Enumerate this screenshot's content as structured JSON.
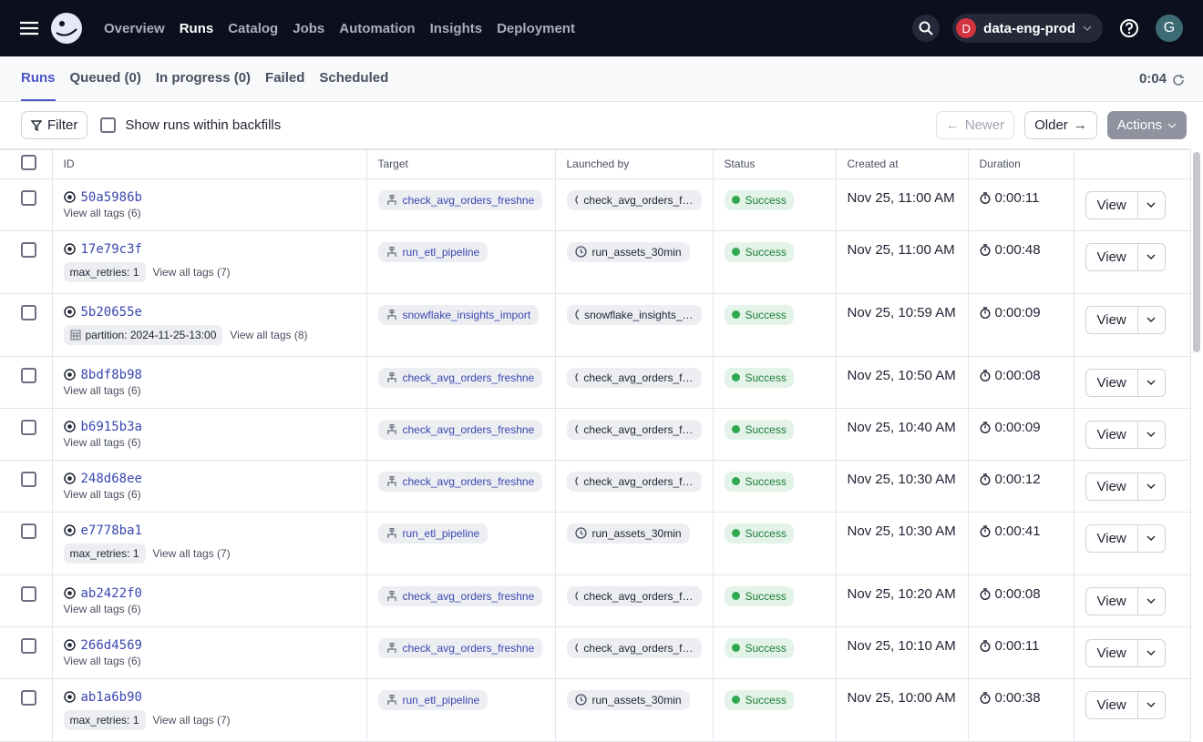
{
  "nav": {
    "links": [
      "Overview",
      "Runs",
      "Catalog",
      "Jobs",
      "Automation",
      "Insights",
      "Deployment"
    ],
    "active": 1,
    "deployment": {
      "initial": "D",
      "name": "data-eng-prod"
    },
    "user_initial": "G"
  },
  "tabs": {
    "items": [
      "Runs",
      "Queued (0)",
      "In progress (0)",
      "Failed",
      "Scheduled"
    ],
    "active": 0,
    "refresh_timer": "0:04"
  },
  "toolbar": {
    "filter": "Filter",
    "backfills_toggle": "Show runs within backfills",
    "newer": "Newer",
    "older": "Older",
    "actions": "Actions"
  },
  "table": {
    "columns": [
      "ID",
      "Target",
      "Launched by",
      "Status",
      "Created at",
      "Duration"
    ],
    "row_action": "View",
    "rows": [
      {
        "id": "50a5986b",
        "tags": [],
        "view_all_tags": "View all tags (6)",
        "target": "check_avg_orders_freshne",
        "launched_by": "check_avg_orders_f…",
        "status": "Success",
        "created_at": "Nov 25, 11:00 AM",
        "duration": "0:00:11"
      },
      {
        "id": "17e79c3f",
        "tags": [
          "max_retries: 1"
        ],
        "view_all_tags": "View all tags (7)",
        "target": "run_etl_pipeline",
        "launched_by": "run_assets_30min",
        "status": "Success",
        "created_at": "Nov 25, 11:00 AM",
        "duration": "0:00:48"
      },
      {
        "id": "5b20655e",
        "tags": [
          "partition: 2024-11-25-13:00"
        ],
        "view_all_tags": "View all tags (8)",
        "target": "snowflake_insights_import",
        "launched_by": "snowflake_insights_…",
        "status": "Success",
        "created_at": "Nov 25, 10:59 AM",
        "duration": "0:00:09"
      },
      {
        "id": "8bdf8b98",
        "tags": [],
        "view_all_tags": "View all tags (6)",
        "target": "check_avg_orders_freshne",
        "launched_by": "check_avg_orders_f…",
        "status": "Success",
        "created_at": "Nov 25, 10:50 AM",
        "duration": "0:00:08"
      },
      {
        "id": "b6915b3a",
        "tags": [],
        "view_all_tags": "View all tags (6)",
        "target": "check_avg_orders_freshne",
        "launched_by": "check_avg_orders_f…",
        "status": "Success",
        "created_at": "Nov 25, 10:40 AM",
        "duration": "0:00:09"
      },
      {
        "id": "248d68ee",
        "tags": [],
        "view_all_tags": "View all tags (6)",
        "target": "check_avg_orders_freshne",
        "launched_by": "check_avg_orders_f…",
        "status": "Success",
        "created_at": "Nov 25, 10:30 AM",
        "duration": "0:00:12"
      },
      {
        "id": "e7778ba1",
        "tags": [
          "max_retries: 1"
        ],
        "view_all_tags": "View all tags (7)",
        "target": "run_etl_pipeline",
        "launched_by": "run_assets_30min",
        "status": "Success",
        "created_at": "Nov 25, 10:30 AM",
        "duration": "0:00:41"
      },
      {
        "id": "ab2422f0",
        "tags": [],
        "view_all_tags": "View all tags (6)",
        "target": "check_avg_orders_freshne",
        "launched_by": "check_avg_orders_f…",
        "status": "Success",
        "created_at": "Nov 25, 10:20 AM",
        "duration": "0:00:08"
      },
      {
        "id": "266d4569",
        "tags": [],
        "view_all_tags": "View all tags (6)",
        "target": "check_avg_orders_freshne",
        "launched_by": "check_avg_orders_f…",
        "status": "Success",
        "created_at": "Nov 25, 10:10 AM",
        "duration": "0:00:11"
      },
      {
        "id": "ab1a6b90",
        "tags": [
          "max_retries: 1"
        ],
        "view_all_tags": "View all tags (7)",
        "target": "run_etl_pipeline",
        "launched_by": "run_assets_30min",
        "status": "Success",
        "created_at": "Nov 25, 10:00 AM",
        "duration": "0:00:38"
      }
    ]
  }
}
